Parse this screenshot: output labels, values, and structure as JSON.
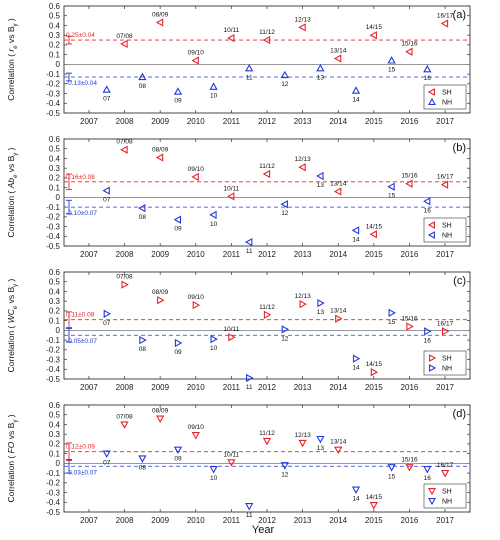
{
  "figure": {
    "xlabel": "Year",
    "colors": {
      "SH": "#e8232a",
      "NH": "#2139d9",
      "frame": "#333333",
      "zero": "#777777"
    }
  },
  "chart_data": [
    {
      "type": "scatter",
      "panel_label": "(a)",
      "ylabel": "Correlation ( r_e vs B_y )",
      "ylabel_text": "Correlation (",
      "ylabel_var": "r",
      "ylabel_sub": "e",
      "ylabel_vs": " vs B",
      "ylabel_vsub": "y",
      "ylabel_end": ")",
      "xlim": [
        2006.3,
        2017.7
      ],
      "ylim": [
        -0.5,
        0.6
      ],
      "yticks": [
        -0.5,
        -0.4,
        -0.3,
        -0.2,
        -0.1,
        0,
        0.1,
        0.2,
        0.3,
        0.4,
        0.5,
        0.6
      ],
      "xticks": [
        2007,
        2008,
        2009,
        2010,
        2011,
        2012,
        2013,
        2014,
        2015,
        2016,
        2017
      ],
      "legend": {
        "placement": "bottom-right",
        "entries": [
          "SH",
          "NH"
        ]
      },
      "stats": {
        "SH": {
          "label": "0.25±0.04",
          "mean": 0.25,
          "std": 0.04
        },
        "NH": {
          "label": "-0.13±0.04",
          "mean": -0.13,
          "std": 0.04
        }
      },
      "series": [
        {
          "name": "SH",
          "marker": "triangle-left",
          "points": [
            {
              "x": 2008.0,
              "y": 0.21,
              "label": "07/08"
            },
            {
              "x": 2009.0,
              "y": 0.43,
              "label": "08/09"
            },
            {
              "x": 2010.0,
              "y": 0.04,
              "label": "09/10"
            },
            {
              "x": 2011.0,
              "y": 0.27,
              "label": "10/11"
            },
            {
              "x": 2012.0,
              "y": 0.25,
              "label": "11/12"
            },
            {
              "x": 2013.0,
              "y": 0.38,
              "label": "12/13"
            },
            {
              "x": 2014.0,
              "y": 0.06,
              "label": "13/14"
            },
            {
              "x": 2015.0,
              "y": 0.3,
              "label": "14/15"
            },
            {
              "x": 2016.0,
              "y": 0.13,
              "label": "15/16"
            },
            {
              "x": 2017.0,
              "y": 0.42,
              "label": "16/17"
            }
          ]
        },
        {
          "name": "NH",
          "marker": "triangle-up",
          "points": [
            {
              "x": 2007.5,
              "y": -0.26,
              "label": "07"
            },
            {
              "x": 2008.5,
              "y": -0.13,
              "label": "08"
            },
            {
              "x": 2009.5,
              "y": -0.28,
              "label": "09"
            },
            {
              "x": 2010.5,
              "y": -0.23,
              "label": "10"
            },
            {
              "x": 2011.5,
              "y": -0.04,
              "label": "11"
            },
            {
              "x": 2012.5,
              "y": -0.11,
              "label": "12"
            },
            {
              "x": 2013.5,
              "y": -0.04,
              "label": "13"
            },
            {
              "x": 2014.5,
              "y": -0.27,
              "label": "14"
            },
            {
              "x": 2015.5,
              "y": 0.04,
              "label": "15"
            },
            {
              "x": 2016.5,
              "y": -0.05,
              "label": "16"
            }
          ]
        }
      ]
    },
    {
      "type": "scatter",
      "panel_label": "(b)",
      "ylabel": "Correlation ( Ab_e vs B_y )",
      "ylabel_text": "Correlation (",
      "ylabel_var": "Ab",
      "ylabel_sub": "e",
      "ylabel_vs": " vs B",
      "ylabel_vsub": "y",
      "ylabel_end": ")",
      "xlim": [
        2006.3,
        2017.7
      ],
      "ylim": [
        -0.5,
        0.6
      ],
      "yticks": [
        -0.5,
        -0.4,
        -0.3,
        -0.2,
        -0.1,
        0,
        0.1,
        0.2,
        0.3,
        0.4,
        0.5,
        0.6
      ],
      "xticks": [
        2007,
        2008,
        2009,
        2010,
        2011,
        2012,
        2013,
        2014,
        2015,
        2016,
        2017
      ],
      "legend": {
        "placement": "bottom-right",
        "entries": [
          "SH",
          "NH"
        ]
      },
      "stats": {
        "SH": {
          "label": "0.16±0.08",
          "mean": 0.16,
          "std": 0.08
        },
        "NH": {
          "label": "-0.10±0.07",
          "mean": -0.1,
          "std": 0.07
        }
      },
      "series": [
        {
          "name": "SH",
          "marker": "triangle-left",
          "points": [
            {
              "x": 2008.0,
              "y": 0.49,
              "label": "07/08"
            },
            {
              "x": 2009.0,
              "y": 0.41,
              "label": "08/09"
            },
            {
              "x": 2010.0,
              "y": 0.21,
              "label": "09/10"
            },
            {
              "x": 2011.0,
              "y": 0.01,
              "label": "10/11"
            },
            {
              "x": 2012.0,
              "y": 0.24,
              "label": "11/12"
            },
            {
              "x": 2013.0,
              "y": 0.31,
              "label": "12/13"
            },
            {
              "x": 2014.0,
              "y": 0.06,
              "label": "13/14"
            },
            {
              "x": 2015.0,
              "y": -0.38,
              "label": "14/15"
            },
            {
              "x": 2016.0,
              "y": 0.14,
              "label": "15/16"
            },
            {
              "x": 2017.0,
              "y": 0.13,
              "label": "16/17"
            }
          ]
        },
        {
          "name": "NH",
          "marker": "triangle-left",
          "points": [
            {
              "x": 2007.5,
              "y": 0.07,
              "label": "07"
            },
            {
              "x": 2008.5,
              "y": -0.11,
              "label": "08"
            },
            {
              "x": 2009.5,
              "y": -0.23,
              "label": "09"
            },
            {
              "x": 2010.5,
              "y": -0.18,
              "label": "10"
            },
            {
              "x": 2011.5,
              "y": -0.46,
              "label": "11"
            },
            {
              "x": 2012.5,
              "y": -0.07,
              "label": "12"
            },
            {
              "x": 2013.5,
              "y": 0.22,
              "label": "13"
            },
            {
              "x": 2014.5,
              "y": -0.34,
              "label": "14"
            },
            {
              "x": 2015.5,
              "y": 0.11,
              "label": "15"
            },
            {
              "x": 2016.5,
              "y": -0.04,
              "label": "16"
            }
          ]
        }
      ]
    },
    {
      "type": "scatter",
      "panel_label": "(c)",
      "ylabel": "Correlation ( WC_e vs B_y )",
      "ylabel_text": "Correlation (",
      "ylabel_var": "WC",
      "ylabel_sub": "e",
      "ylabel_vs": " vs B",
      "ylabel_vsub": "y",
      "ylabel_end": ")",
      "xlim": [
        2006.3,
        2017.7
      ],
      "ylim": [
        -0.5,
        0.6
      ],
      "yticks": [
        -0.5,
        -0.4,
        -0.3,
        -0.2,
        -0.1,
        0,
        0.1,
        0.2,
        0.3,
        0.4,
        0.5,
        0.6
      ],
      "xticks": [
        2007,
        2008,
        2009,
        2010,
        2011,
        2012,
        2013,
        2014,
        2015,
        2016,
        2017
      ],
      "legend": {
        "placement": "bottom-right",
        "entries": [
          "SH",
          "NH"
        ]
      },
      "stats": {
        "SH": {
          "label": "0.11±0.08",
          "mean": 0.11,
          "std": 0.08
        },
        "NH": {
          "label": "-0.05±0.07",
          "mean": -0.05,
          "std": 0.07
        }
      },
      "series": [
        {
          "name": "SH",
          "marker": "triangle-right",
          "points": [
            {
              "x": 2008.0,
              "y": 0.47,
              "label": "07/08"
            },
            {
              "x": 2009.0,
              "y": 0.31,
              "label": "08/09"
            },
            {
              "x": 2010.0,
              "y": 0.26,
              "label": "09/10"
            },
            {
              "x": 2011.0,
              "y": -0.07,
              "label": "10/11"
            },
            {
              "x": 2012.0,
              "y": 0.16,
              "label": "11/12"
            },
            {
              "x": 2013.0,
              "y": 0.27,
              "label": "12/13"
            },
            {
              "x": 2014.0,
              "y": 0.12,
              "label": "13/14"
            },
            {
              "x": 2015.0,
              "y": -0.43,
              "label": "14/15"
            },
            {
              "x": 2016.0,
              "y": 0.04,
              "label": "15/16"
            },
            {
              "x": 2017.0,
              "y": -0.01,
              "label": "16/17"
            }
          ]
        },
        {
          "name": "NH",
          "marker": "triangle-right",
          "points": [
            {
              "x": 2007.5,
              "y": 0.17,
              "label": "07"
            },
            {
              "x": 2008.5,
              "y": -0.1,
              "label": "08"
            },
            {
              "x": 2009.5,
              "y": -0.13,
              "label": "09"
            },
            {
              "x": 2010.5,
              "y": -0.09,
              "label": "10"
            },
            {
              "x": 2011.5,
              "y": -0.49,
              "label": "11"
            },
            {
              "x": 2012.5,
              "y": 0.01,
              "label": "12"
            },
            {
              "x": 2013.5,
              "y": 0.28,
              "label": "13"
            },
            {
              "x": 2014.5,
              "y": -0.29,
              "label": "14"
            },
            {
              "x": 2015.5,
              "y": 0.18,
              "label": "15"
            },
            {
              "x": 2016.5,
              "y": -0.01,
              "label": "16"
            }
          ]
        }
      ]
    },
    {
      "type": "scatter",
      "panel_label": "(d)",
      "ylabel": "Correlation ( FO vs B_y )",
      "ylabel_text": "Correlation (",
      "ylabel_var": "FO",
      "ylabel_sub": "",
      "ylabel_vs": " vs B",
      "ylabel_vsub": "y",
      "ylabel_end": ")",
      "xlim": [
        2006.3,
        2017.7
      ],
      "ylim": [
        -0.5,
        0.6
      ],
      "yticks": [
        -0.5,
        -0.4,
        -0.3,
        -0.2,
        -0.1,
        0,
        0.1,
        0.2,
        0.3,
        0.4,
        0.5,
        0.6
      ],
      "xticks": [
        2007,
        2008,
        2009,
        2010,
        2011,
        2012,
        2013,
        2014,
        2015,
        2016,
        2017
      ],
      "legend": {
        "placement": "bottom-right",
        "entries": [
          "SH",
          "NH"
        ]
      },
      "stats": {
        "SH": {
          "label": "0.12±0.09",
          "mean": 0.12,
          "std": 0.09
        },
        "NH": {
          "label": "-0.03±0.07",
          "mean": -0.03,
          "std": 0.07
        }
      },
      "series": [
        {
          "name": "SH",
          "marker": "triangle-down",
          "points": [
            {
              "x": 2008.0,
              "y": 0.4,
              "label": "07/08"
            },
            {
              "x": 2009.0,
              "y": 0.46,
              "label": "08/09"
            },
            {
              "x": 2010.0,
              "y": 0.29,
              "label": "09/10"
            },
            {
              "x": 2011.0,
              "y": 0.01,
              "label": "10/11"
            },
            {
              "x": 2012.0,
              "y": 0.23,
              "label": "11/12"
            },
            {
              "x": 2013.0,
              "y": 0.21,
              "label": "12/13"
            },
            {
              "x": 2014.0,
              "y": 0.14,
              "label": "13/14"
            },
            {
              "x": 2015.0,
              "y": -0.43,
              "label": "14/15"
            },
            {
              "x": 2016.0,
              "y": -0.04,
              "label": "15/16"
            },
            {
              "x": 2017.0,
              "y": -0.1,
              "label": "16/17"
            }
          ]
        },
        {
          "name": "NH",
          "marker": "triangle-down",
          "points": [
            {
              "x": 2007.5,
              "y": 0.1,
              "label": "07"
            },
            {
              "x": 2008.5,
              "y": 0.05,
              "label": "08"
            },
            {
              "x": 2009.5,
              "y": 0.14,
              "label": "09"
            },
            {
              "x": 2010.5,
              "y": -0.06,
              "label": "10"
            },
            {
              "x": 2011.5,
              "y": -0.44,
              "label": "11"
            },
            {
              "x": 2012.5,
              "y": -0.02,
              "label": "12"
            },
            {
              "x": 2013.5,
              "y": 0.25,
              "label": "13"
            },
            {
              "x": 2014.5,
              "y": -0.27,
              "label": "14"
            },
            {
              "x": 2015.5,
              "y": -0.04,
              "label": "15"
            },
            {
              "x": 2016.5,
              "y": -0.06,
              "label": "16"
            }
          ]
        }
      ]
    }
  ]
}
